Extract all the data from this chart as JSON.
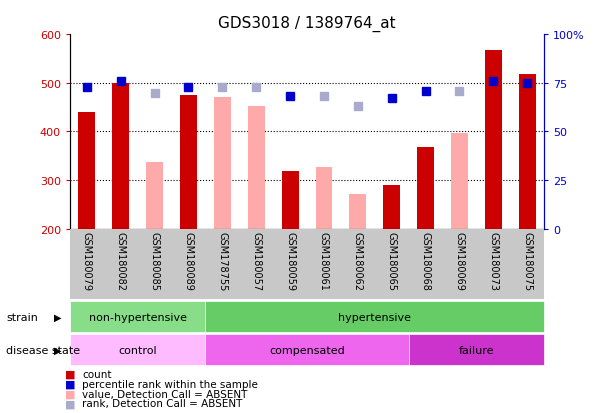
{
  "title": "GDS3018 / 1389764_at",
  "samples": [
    "GSM180079",
    "GSM180082",
    "GSM180085",
    "GSM180089",
    "GSM178755",
    "GSM180057",
    "GSM180059",
    "GSM180061",
    "GSM180062",
    "GSM180065",
    "GSM180068",
    "GSM180069",
    "GSM180073",
    "GSM180075"
  ],
  "count_present": [
    440,
    500,
    null,
    475,
    null,
    null,
    318,
    null,
    null,
    290,
    368,
    null,
    568,
    518
  ],
  "count_absent": [
    null,
    null,
    338,
    null,
    470,
    452,
    null,
    328,
    272,
    null,
    null,
    396,
    null,
    null
  ],
  "percentile_present": [
    73,
    76,
    null,
    73,
    null,
    null,
    68,
    null,
    null,
    67,
    71,
    null,
    76,
    75
  ],
  "percentile_absent": [
    null,
    null,
    70,
    null,
    73,
    73,
    null,
    68,
    63,
    null,
    null,
    71,
    null,
    null
  ],
  "ylim_left": [
    200,
    600
  ],
  "ylim_right": [
    0,
    100
  ],
  "yticks_left": [
    200,
    300,
    400,
    500,
    600
  ],
  "yticks_right": [
    0,
    25,
    50,
    75,
    100
  ],
  "ytick_labels_right": [
    "0",
    "25",
    "50",
    "75",
    "100%"
  ],
  "strain_groups": [
    {
      "label": "non-hypertensive",
      "start": 0,
      "end": 4,
      "color": "#88dd88"
    },
    {
      "label": "hypertensive",
      "start": 4,
      "end": 14,
      "color": "#66cc66"
    }
  ],
  "disease_groups": [
    {
      "label": "control",
      "start": 0,
      "end": 4,
      "color": "#ffbbff"
    },
    {
      "label": "compensated",
      "start": 4,
      "end": 10,
      "color": "#ee66ee"
    },
    {
      "label": "failure",
      "start": 10,
      "end": 14,
      "color": "#cc33cc"
    }
  ],
  "count_color_present": "#cc0000",
  "count_color_absent": "#ffaaaa",
  "percentile_color_present": "#0000cc",
  "percentile_color_absent": "#aaaacc",
  "bg_color": "#ffffff",
  "label_area_color": "#c8c8c8",
  "left_color": "#cc0000",
  "right_color": "#0000cc",
  "bar_width": 0.5
}
